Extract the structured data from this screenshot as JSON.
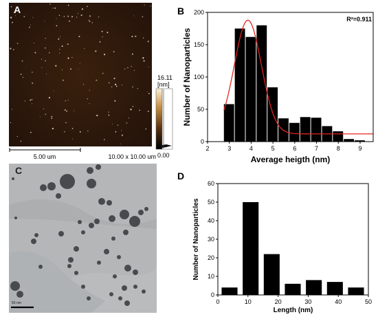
{
  "panels": {
    "a": {
      "letter": "A",
      "scale_bar": "5.00 um",
      "scan_size": "10.00 x 10.00 um",
      "colorbar_max": "16.11",
      "colorbar_unit": "[nm]",
      "colorbar_min": "0.00"
    },
    "b": {
      "letter": "B",
      "r2": "R²=0.911"
    },
    "c": {
      "letter": "C",
      "scale_bar": "50 nm"
    },
    "d": {
      "letter": "D"
    }
  },
  "colors": {
    "afm_background": "#2a1608",
    "particle": "#f3dfc0",
    "bar": "#000000",
    "fit_curve": "#e52421",
    "tem_background": "#b4b6b8",
    "tem_particle": "#3f4143"
  },
  "chart_data": [
    {
      "type": "bar",
      "panel": "B",
      "xlabel": "Average heigth (nm)",
      "ylabel": "Number of Nanoparticles",
      "xlim": [
        2,
        9.6
      ],
      "ylim": [
        0,
        200
      ],
      "x_ticks": [
        2,
        3,
        4,
        5,
        6,
        7,
        8,
        9
      ],
      "y_ticks": [
        0,
        50,
        100,
        150,
        200
      ],
      "bin_width": 0.5,
      "bins": [
        {
          "x": 3.0,
          "value": 58
        },
        {
          "x": 3.5,
          "value": 175
        },
        {
          "x": 4.0,
          "value": 162
        },
        {
          "x": 4.5,
          "value": 180
        },
        {
          "x": 5.0,
          "value": 84
        },
        {
          "x": 5.5,
          "value": 36
        },
        {
          "x": 6.0,
          "value": 29
        },
        {
          "x": 6.5,
          "value": 38
        },
        {
          "x": 7.0,
          "value": 37
        },
        {
          "x": 7.5,
          "value": 24
        },
        {
          "x": 8.0,
          "value": 16
        },
        {
          "x": 8.5,
          "value": 4
        },
        {
          "x": 9.0,
          "value": 2
        }
      ],
      "fit": {
        "type": "gaussian",
        "annotation": "R²=0.911",
        "baseline": 12,
        "amplitude": 176,
        "center": 3.85,
        "sigma": 0.62,
        "x_range": [
          2.75,
          9.6
        ]
      }
    },
    {
      "type": "bar",
      "panel": "D",
      "xlabel": "Length (nm)",
      "ylabel": "Number of Nanoparticles",
      "xlim": [
        0,
        50
      ],
      "ylim": [
        0,
        60
      ],
      "x_ticks": [
        0,
        10,
        20,
        30,
        40,
        50
      ],
      "y_ticks": [
        0,
        10,
        20,
        30,
        40,
        50,
        60
      ],
      "bin_width": 5.5,
      "bins": [
        {
          "x": 4,
          "value": 4
        },
        {
          "x": 11,
          "value": 50
        },
        {
          "x": 18,
          "value": 22
        },
        {
          "x": 25,
          "value": 6
        },
        {
          "x": 32,
          "value": 8
        },
        {
          "x": 39,
          "value": 7
        },
        {
          "x": 46,
          "value": 4
        }
      ]
    }
  ]
}
